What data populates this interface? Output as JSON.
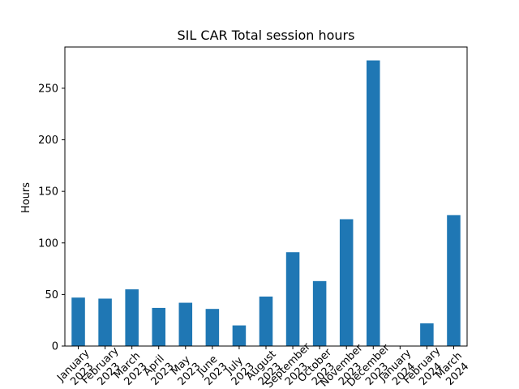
{
  "chart_data": {
    "type": "bar",
    "title": "SIL CAR Total session hours",
    "xlabel": "",
    "ylabel": "Hours",
    "ylim": [
      0,
      290
    ],
    "yticks": [
      0,
      50,
      100,
      150,
      200,
      250
    ],
    "grid": false,
    "legend": "none",
    "bar_color": "#1f77b4",
    "categories": [
      "January\n2023",
      "February\n2023",
      "March\n2023",
      "April\n2023",
      "May\n2023",
      "June\n2023",
      "July\n2023",
      "August\n2023",
      "September\n2023",
      "October\n2023",
      "November\n2023",
      "December\n2023",
      "January\n2024",
      "February\n2024",
      "March\n2024"
    ],
    "values": [
      47,
      46,
      55,
      37,
      42,
      36,
      20,
      48,
      91,
      63,
      123,
      277,
      0,
      22,
      127
    ]
  }
}
